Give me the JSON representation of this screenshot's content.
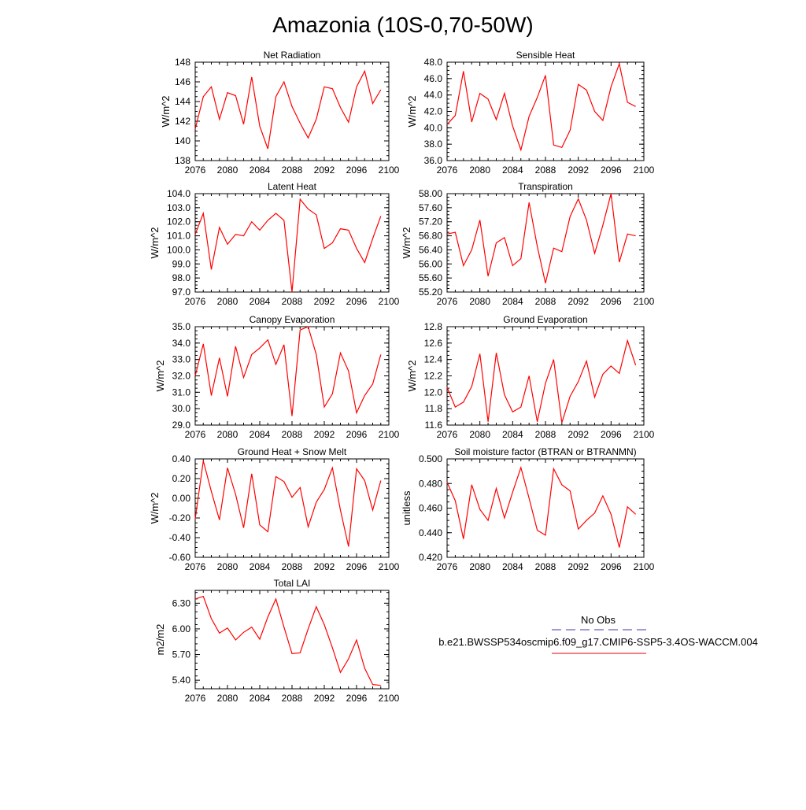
{
  "figure": {
    "title": "Amazonia (10S-0,70-50W)",
    "legend": {
      "entries": [
        {
          "label": "No Obs",
          "color": "#3b3bb0",
          "style": "dashed"
        },
        {
          "label": "b.e21.BWSSP534oscmip6.f09_g17.CMIP6-SSP5-3.4OS-WACCM.004",
          "color": "#e8000b",
          "style": "solid"
        }
      ]
    },
    "line_color": "#ff0000"
  },
  "chart_data": [
    {
      "type": "line",
      "title": "Net Radiation",
      "ylabel": "W/m^2",
      "xlim": [
        2076,
        2100
      ],
      "ylim": [
        138,
        148
      ],
      "xticks": [
        "2076",
        "2080",
        "2084",
        "2088",
        "2092",
        "2096",
        "2100"
      ],
      "yticks": [
        "138",
        "140",
        "142",
        "144",
        "146",
        "148"
      ],
      "x": [
        2076,
        2077,
        2078,
        2079,
        2080,
        2081,
        2082,
        2083,
        2084,
        2085,
        2086,
        2087,
        2088,
        2089,
        2090,
        2091,
        2092,
        2093,
        2094,
        2095,
        2096,
        2097,
        2098,
        2099
      ],
      "values": [
        141.2,
        144.5,
        145.5,
        142.2,
        144.9,
        144.6,
        141.7,
        146.5,
        141.5,
        139.2,
        144.5,
        146.0,
        143.5,
        141.8,
        140.3,
        142.2,
        145.5,
        145.3,
        143.4,
        141.9,
        145.5,
        147.1,
        143.8,
        145.2
      ]
    },
    {
      "type": "line",
      "title": "Sensible Heat",
      "ylabel": "W/m^2",
      "xlim": [
        2076,
        2100
      ],
      "ylim": [
        36,
        48
      ],
      "xticks": [
        "2076",
        "2080",
        "2084",
        "2088",
        "2092",
        "2096",
        "2100"
      ],
      "yticks": [
        "36.0",
        "38.0",
        "40.0",
        "42.0",
        "44.0",
        "46.0",
        "48.0"
      ],
      "x": [
        2076,
        2077,
        2078,
        2079,
        2080,
        2081,
        2082,
        2083,
        2084,
        2085,
        2086,
        2087,
        2088,
        2089,
        2090,
        2091,
        2092,
        2093,
        2094,
        2095,
        2096,
        2097,
        2098,
        2099
      ],
      "values": [
        40.4,
        41.5,
        46.9,
        40.7,
        44.2,
        43.5,
        41.0,
        44.2,
        40.2,
        37.3,
        41.4,
        43.7,
        46.4,
        37.9,
        37.6,
        39.7,
        45.3,
        44.6,
        42.0,
        40.9,
        45.0,
        47.8,
        43.1,
        42.6
      ]
    },
    {
      "type": "line",
      "title": "Latent Heat",
      "ylabel": "W/m^2",
      "xlim": [
        2076,
        2100
      ],
      "ylim": [
        97,
        104
      ],
      "xticks": [
        "2076",
        "2080",
        "2084",
        "2088",
        "2092",
        "2096",
        "2100"
      ],
      "yticks": [
        "97.0",
        "98.0",
        "99.0",
        "100.0",
        "101.0",
        "102.0",
        "103.0",
        "104.0"
      ],
      "x": [
        2076,
        2077,
        2078,
        2079,
        2080,
        2081,
        2082,
        2083,
        2084,
        2085,
        2086,
        2087,
        2088,
        2089,
        2090,
        2091,
        2092,
        2093,
        2094,
        2095,
        2096,
        2097,
        2098,
        2099
      ],
      "values": [
        101.1,
        102.6,
        98.6,
        101.6,
        100.4,
        101.1,
        101.0,
        102.0,
        101.4,
        102.1,
        102.6,
        102.1,
        97.0,
        103.6,
        102.9,
        102.5,
        100.1,
        100.5,
        101.5,
        101.4,
        100.1,
        99.1,
        100.8,
        102.4
      ]
    },
    {
      "type": "line",
      "title": "Transpiration",
      "ylabel": "W/m^2",
      "xlim": [
        2076,
        2100
      ],
      "ylim": [
        55.2,
        58.0
      ],
      "xticks": [
        "2076",
        "2080",
        "2084",
        "2088",
        "2092",
        "2096",
        "2100"
      ],
      "yticks": [
        "55.20",
        "55.60",
        "56.00",
        "56.40",
        "56.80",
        "57.20",
        "57.60",
        "58.00"
      ],
      "x": [
        2076,
        2077,
        2078,
        2079,
        2080,
        2081,
        2082,
        2083,
        2084,
        2085,
        2086,
        2087,
        2088,
        2089,
        2090,
        2091,
        2092,
        2093,
        2094,
        2095,
        2096,
        2097,
        2098,
        2099
      ],
      "values": [
        56.85,
        56.9,
        55.95,
        56.4,
        57.25,
        55.65,
        56.6,
        56.75,
        55.95,
        56.15,
        57.75,
        56.5,
        55.45,
        56.45,
        56.35,
        57.35,
        57.85,
        57.25,
        56.3,
        57.1,
        58.0,
        56.05,
        56.85,
        56.8
      ]
    },
    {
      "type": "line",
      "title": "Canopy Evaporation",
      "ylabel": "W/m^2",
      "xlim": [
        2076,
        2100
      ],
      "ylim": [
        29,
        35
      ],
      "xticks": [
        "2076",
        "2080",
        "2084",
        "2088",
        "2092",
        "2096",
        "2100"
      ],
      "yticks": [
        "29.0",
        "30.0",
        "31.0",
        "32.0",
        "33.0",
        "34.0",
        "35.0"
      ],
      "x": [
        2076,
        2077,
        2078,
        2079,
        2080,
        2081,
        2082,
        2083,
        2084,
        2085,
        2086,
        2087,
        2088,
        2089,
        2090,
        2091,
        2092,
        2093,
        2094,
        2095,
        2096,
        2097,
        2098,
        2099
      ],
      "values": [
        32.0,
        33.95,
        30.8,
        33.1,
        30.75,
        33.8,
        31.9,
        33.3,
        33.7,
        34.2,
        32.7,
        33.9,
        29.55,
        34.8,
        35.0,
        33.3,
        30.1,
        30.9,
        33.4,
        32.3,
        29.75,
        30.8,
        31.5,
        33.3
      ]
    },
    {
      "type": "line",
      "title": "Ground Evaporation",
      "ylabel": "W/m^2",
      "xlim": [
        2076,
        2100
      ],
      "ylim": [
        11.6,
        12.8
      ],
      "xticks": [
        "2076",
        "2080",
        "2084",
        "2088",
        "2092",
        "2096",
        "2100"
      ],
      "yticks": [
        "11.6",
        "11.8",
        "12.0",
        "12.2",
        "12.4",
        "12.6",
        "12.8"
      ],
      "x": [
        2076,
        2077,
        2078,
        2079,
        2080,
        2081,
        2082,
        2083,
        2084,
        2085,
        2086,
        2087,
        2088,
        2089,
        2090,
        2091,
        2092,
        2093,
        2094,
        2095,
        2096,
        2097,
        2098,
        2099
      ],
      "values": [
        12.06,
        11.82,
        11.88,
        12.07,
        12.47,
        11.64,
        12.48,
        11.97,
        11.76,
        11.82,
        12.2,
        11.64,
        12.11,
        12.4,
        11.63,
        11.95,
        12.13,
        12.38,
        11.94,
        12.22,
        12.32,
        12.23,
        12.63,
        12.33
      ]
    },
    {
      "type": "line",
      "title": "Ground Heat + Snow Melt",
      "ylabel": "W/m^2",
      "xlim": [
        2076,
        2100
      ],
      "ylim": [
        -0.6,
        0.4
      ],
      "xticks": [
        "2076",
        "2080",
        "2084",
        "2088",
        "2092",
        "2096",
        "2100"
      ],
      "yticks": [
        "-0.60",
        "-0.40",
        "-0.20",
        "0.00",
        "0.20",
        "0.40"
      ],
      "x": [
        2076,
        2077,
        2078,
        2079,
        2080,
        2081,
        2082,
        2083,
        2084,
        2085,
        2086,
        2087,
        2088,
        2089,
        2090,
        2091,
        2092,
        2093,
        2094,
        2095,
        2096,
        2097,
        2098,
        2099
      ],
      "values": [
        -0.21,
        0.38,
        0.07,
        -0.22,
        0.31,
        0.04,
        -0.3,
        0.25,
        -0.27,
        -0.34,
        0.22,
        0.17,
        0.01,
        0.11,
        -0.29,
        -0.04,
        0.09,
        0.31,
        -0.12,
        -0.49,
        0.3,
        0.18,
        -0.12,
        0.18
      ]
    },
    {
      "type": "line",
      "title": "Soil moisture factor (BTRAN or BTRANMN)",
      "ylabel": "unitless",
      "xlim": [
        2076,
        2100
      ],
      "ylim": [
        0.42,
        0.5
      ],
      "xticks": [
        "2076",
        "2080",
        "2084",
        "2088",
        "2092",
        "2096",
        "2100"
      ],
      "yticks": [
        "0.420",
        "0.440",
        "0.460",
        "0.480",
        "0.500"
      ],
      "x": [
        2076,
        2077,
        2078,
        2079,
        2080,
        2081,
        2082,
        2083,
        2084,
        2085,
        2086,
        2087,
        2088,
        2089,
        2090,
        2091,
        2092,
        2093,
        2094,
        2095,
        2096,
        2097,
        2098,
        2099
      ],
      "values": [
        0.481,
        0.466,
        0.435,
        0.479,
        0.459,
        0.45,
        0.476,
        0.452,
        0.473,
        0.493,
        0.468,
        0.442,
        0.438,
        0.492,
        0.479,
        0.474,
        0.443,
        0.45,
        0.456,
        0.47,
        0.455,
        0.428,
        0.461,
        0.455
      ]
    },
    {
      "type": "line",
      "title": "Total LAI",
      "ylabel": "m2/m2",
      "xlim": [
        2076,
        2100
      ],
      "ylim": [
        5.3,
        6.45
      ],
      "xticks": [
        "2076",
        "2080",
        "2084",
        "2088",
        "2092",
        "2096",
        "2100"
      ],
      "yticks": [
        "5.40",
        "5.70",
        "6.00",
        "6.30"
      ],
      "x": [
        2076,
        2077,
        2078,
        2079,
        2080,
        2081,
        2082,
        2083,
        2084,
        2085,
        2086,
        2087,
        2088,
        2089,
        2090,
        2091,
        2092,
        2093,
        2094,
        2095,
        2096,
        2097,
        2098,
        2099
      ],
      "values": [
        6.35,
        6.38,
        6.12,
        5.95,
        6.01,
        5.87,
        5.96,
        6.02,
        5.88,
        6.14,
        6.35,
        6.02,
        5.71,
        5.72,
        6.0,
        6.26,
        6.05,
        5.78,
        5.49,
        5.65,
        5.87,
        5.54,
        5.35,
        5.34
      ]
    }
  ]
}
